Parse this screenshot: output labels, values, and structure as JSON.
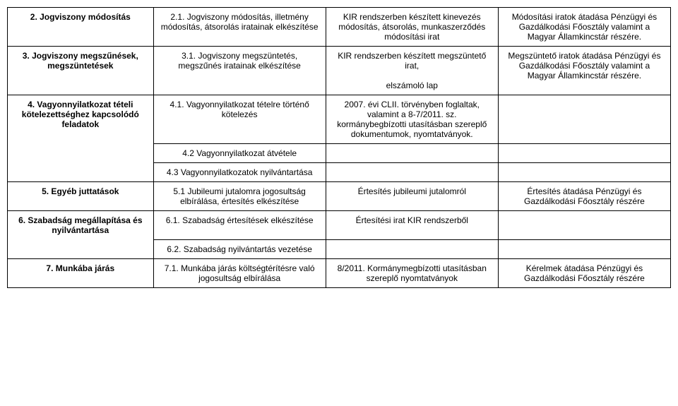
{
  "rows": [
    {
      "c1": "2. Jogviszony módosítás",
      "c1_bold": true,
      "c2": "2.1. Jogviszony módosítás, illetmény módosítás, átsorolás iratainak elkészítése",
      "c3": "KIR rendszerben készített kinevezés módosítás, átsorolás, munkaszerződés módosítási irat",
      "c4": "Módosítási iratok átadása Pénzügyi és Gazdálkodási Főosztály valamint a Magyar Államkincstár részére."
    },
    {
      "c1": "3. Jogviszony megszűnések, megszüntetések",
      "c1_bold": true,
      "c2": "3.1. Jogviszony megszüntetés, megszűnés iratainak elkészítése",
      "c3": "KIR rendszerben készített megszüntető irat,\n\nelszámoló lap",
      "c4": "Megszüntető iratok átadása Pénzügyi és Gazdálkodási Főosztály valamint a Magyar Államkincstár részére."
    },
    {
      "c1": "4. Vagyonnyilatkozat tételi kötelezettséghez kapcsolódó feladatok",
      "c1_bold": true,
      "c2": "4.1. Vagyonnyilatkozat tételre történő kötelezés",
      "c3": "2007. évi CLII. törvényben foglaltak, valamint a 8-7/2011. sz. kormánybegbízotti utasításban szereplő dokumentumok, nyomtatványok.",
      "c4": ""
    },
    {
      "c1": "",
      "c2": "4.2 Vagyonnyilatkozat átvétele",
      "c3": "",
      "c4": ""
    },
    {
      "c1": "",
      "c2": "4.3 Vagyonnyilatkozatok nyilvántartása",
      "c3": "",
      "c4": ""
    },
    {
      "c1": "5. Egyéb juttatások",
      "c1_bold": true,
      "c2": "5.1 Jubileumi jutalomra jogosultság elbírálása, értesítés elkészítése",
      "c3": "Értesítés jubileumi jutalomról",
      "c4": "Értesítés átadása Pénzügyi és Gazdálkodási Főosztály részére"
    },
    {
      "c1": "6. Szabadság megállapítása és nyilvántartása",
      "c1_bold": true,
      "c2": "6.1. Szabadság értesítések elkészítése",
      "c3": "Értesítési irat KIR rendszerből",
      "c4": ""
    },
    {
      "c1": "",
      "c2": "6.2. Szabadság nyilvántartás vezetése",
      "c3": "",
      "c4": ""
    },
    {
      "c1": "7. Munkába járás",
      "c1_bold": true,
      "c2": "7.1. Munkába járás költségtérítésre való jogosultság elbírálása",
      "c3": "8/2011. Kormánymegbízotti utasításban szereplő nyomtatványok",
      "c4": "Kérelmek átadása Pénzügyi és Gazdálkodási Főosztály részére"
    }
  ]
}
